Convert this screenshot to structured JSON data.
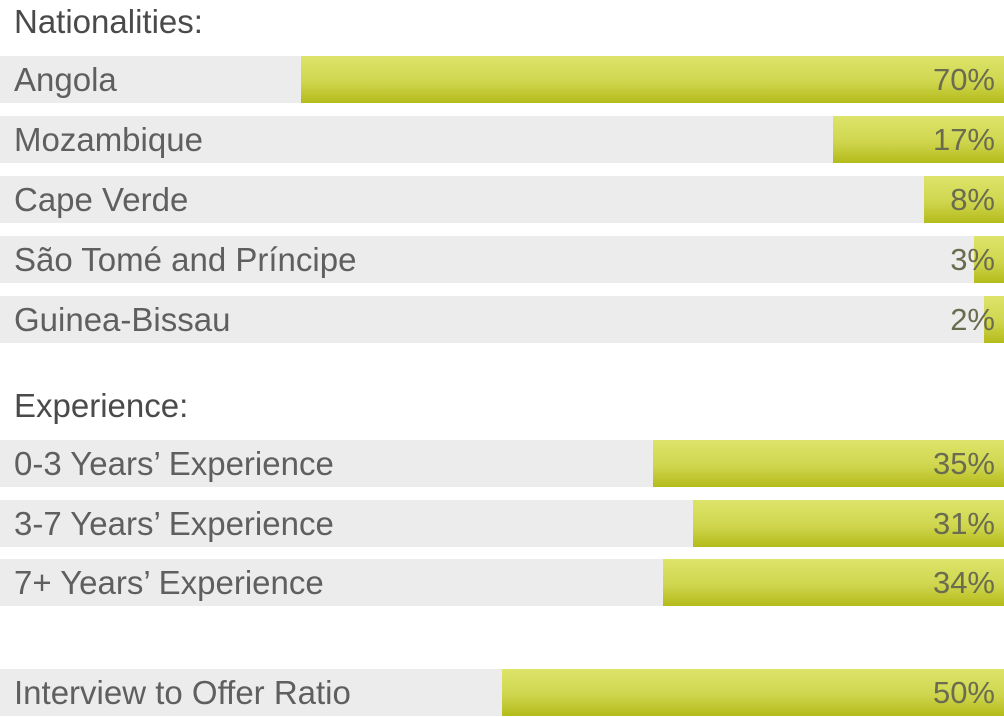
{
  "chart_data": [
    {
      "type": "bar",
      "title": "Nationalities:",
      "categories": [
        "Angola",
        "Mozambique",
        "Cape Verde",
        "São Tomé and Príncipe",
        "Guinea-Bissau"
      ],
      "values": [
        70,
        17,
        8,
        3,
        2
      ],
      "value_labels": [
        "70%",
        "17%",
        "8%",
        "3%",
        "2%"
      ],
      "unit": "%",
      "orientation": "horizontal",
      "ylim": [
        0,
        100
      ]
    },
    {
      "type": "bar",
      "title": "Experience:",
      "categories": [
        "0-3 Years’ Experience",
        "3-7 Years’ Experience",
        "7+  Years’ Experience"
      ],
      "values": [
        35,
        31,
        34
      ],
      "value_labels": [
        "35%",
        "31%",
        "34%"
      ],
      "unit": "%",
      "orientation": "horizontal",
      "ylim": [
        0,
        100
      ]
    },
    {
      "type": "bar",
      "title": "",
      "categories": [
        "Interview to Offer Ratio"
      ],
      "values": [
        50
      ],
      "value_labels": [
        "50%"
      ],
      "unit": "%",
      "orientation": "horizontal",
      "ylim": [
        0,
        100
      ]
    }
  ],
  "colors": {
    "bar_fill": "#cfd64e",
    "track": "#ececec",
    "label_text": "#5f5f5f"
  }
}
